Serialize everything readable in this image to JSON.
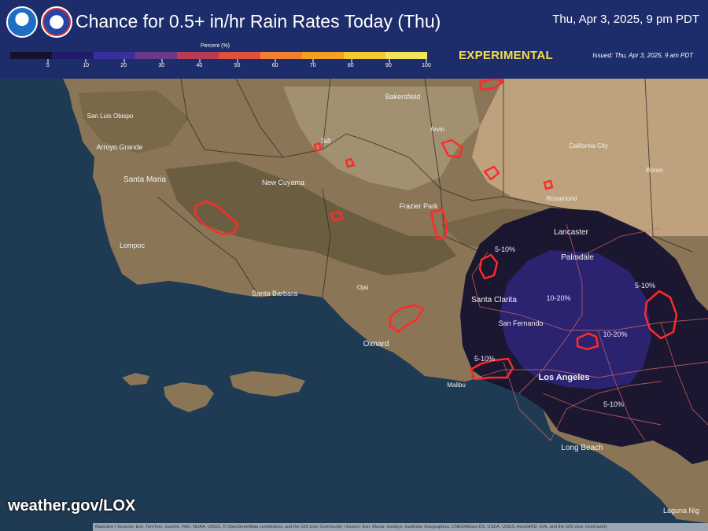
{
  "header": {
    "title": "Chance for 0.5+ in/hr Rain Rates Today (Thu)",
    "valid_time": "Thu, Apr 3, 2025, 9 pm PDT",
    "status": "EXPERIMENTAL",
    "issued": "Issued: Thu, Apr 3, 2025, 9 am PDT"
  },
  "legend": {
    "title": "Percent (%)",
    "ticks": [
      "5",
      "10",
      "20",
      "30",
      "40",
      "50",
      "60",
      "70",
      "80",
      "90",
      "100"
    ],
    "colors": [
      "#15122e",
      "#221a6a",
      "#3a2f9e",
      "#6a3a88",
      "#b83a55",
      "#e0503a",
      "#f08030",
      "#f5a020",
      "#f6c832",
      "#f3e55a"
    ]
  },
  "map": {
    "places": [
      "San Luis Obispo",
      "Arroyo Grande",
      "Santa Maria",
      "Lompoc",
      "New Cuyama",
      "Taft",
      "Bakersfield",
      "Arvin",
      "California City",
      "Boron",
      "Rosamond",
      "Frazier Park",
      "Lancaster",
      "Palmdale",
      "Santa Clarita",
      "San Fernando",
      "Santa Barbara",
      "Ojai",
      "Oxnard",
      "Malibu",
      "Los Angeles",
      "Long Beach",
      "Laguna Nig"
    ],
    "probability_labels": [
      "5-10%",
      "10-20%",
      "5-10%",
      "10-20%",
      "5-10%",
      "5-10%"
    ],
    "colors": {
      "ocean": "#1f3a53",
      "land": "#8a7656",
      "low_prob": "#15122e",
      "mid_prob": "#2e2578",
      "burn_scar": "#ff2a2a"
    }
  },
  "footer": {
    "site": "weather.gov/LOX",
    "attribution": "MapLibre | Sources: Esri, TomTom, Garmin, FAO, NOAA, USGS, © OpenStreetMap contributors, and the GIS User Community | Source: Esri, Maxar, GeoEye, Earthstar Geographics, CNES/Airbus DS, USDA, USGS, AeroGRID, IGN, and the GIS User Community"
  }
}
